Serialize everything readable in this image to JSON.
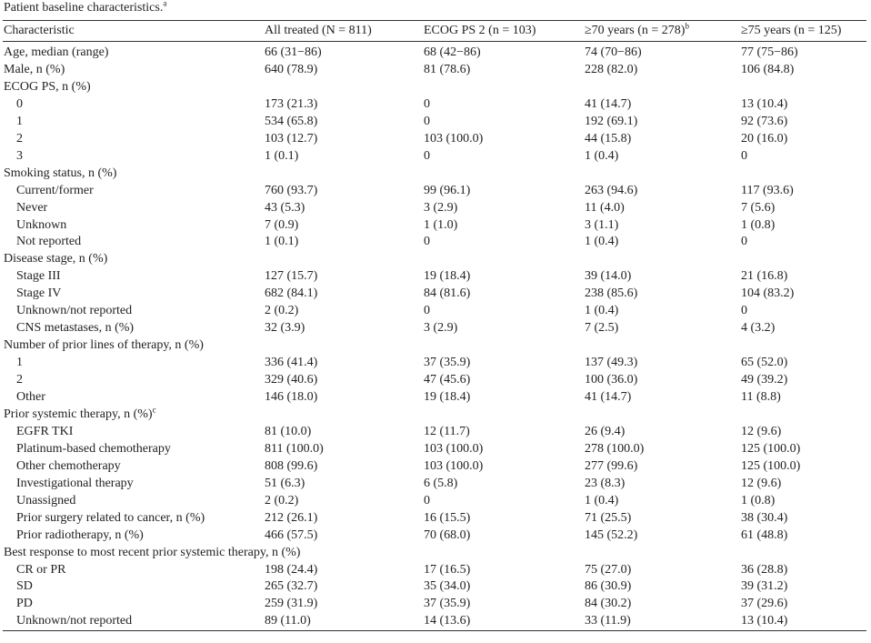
{
  "title": {
    "text": "Patient baseline characteristics.",
    "note": "a"
  },
  "table": {
    "header": [
      {
        "text": "Characteristic"
      },
      {
        "text": "All treated (N = 811)"
      },
      {
        "text": "ECOG PS 2 (n = 103)"
      },
      {
        "text": "≥70 years (n = 278)",
        "note": "b"
      },
      {
        "text": "≥75 years (n = 125)"
      }
    ],
    "rows": [
      {
        "cells": [
          "Age, median (range)",
          "66 (31−86)",
          "68 (42−86)",
          "74 (70−86)",
          "77 (75−86)"
        ]
      },
      {
        "cells": [
          "Male, n (%)",
          "640 (78.9)",
          "81 (78.6)",
          "228 (82.0)",
          "106 (84.8)"
        ]
      },
      {
        "heading": "ECOG PS, n (%)",
        "rows": [
          [
            "0",
            "173 (21.3)",
            "0",
            "41 (14.7)",
            "13 (10.4)"
          ],
          [
            "1",
            "534 (65.8)",
            "0",
            "192 (69.1)",
            "92 (73.6)"
          ],
          [
            "2",
            "103 (12.7)",
            "103 (100.0)",
            "44 (15.8)",
            "20 (16.0)"
          ],
          [
            "3",
            "1 (0.1)",
            "0",
            "1 (0.4)",
            "0"
          ]
        ]
      },
      {
        "heading": "Smoking status, n (%)",
        "rows": [
          [
            "Current/former",
            "760 (93.7)",
            "99 (96.1)",
            "263 (94.6)",
            "117 (93.6)"
          ],
          [
            "Never",
            "43 (5.3)",
            "3 (2.9)",
            "11 (4.0)",
            "7 (5.6)"
          ],
          [
            "Unknown",
            "7 (0.9)",
            "1 (1.0)",
            "3 (1.1)",
            "1 (0.8)"
          ],
          [
            "Not reported",
            "1 (0.1)",
            "0",
            "1 (0.4)",
            "0"
          ]
        ]
      },
      {
        "heading": "Disease stage, n (%)",
        "rows": [
          [
            "Stage III",
            "127 (15.7)",
            "19 (18.4)",
            "39 (14.0)",
            "21 (16.8)"
          ],
          [
            "Stage IV",
            "682 (84.1)",
            "84 (81.6)",
            "238 (85.6)",
            "104 (83.2)"
          ],
          [
            "Unknown/not reported",
            "2 (0.2)",
            "0",
            "1 (0.4)",
            "0"
          ],
          [
            "CNS metastases, n (%)",
            "32 (3.9)",
            "3 (2.9)",
            "7 (2.5)",
            "4 (3.2)"
          ]
        ]
      },
      {
        "heading": "Number of prior lines of therapy, n (%)",
        "rows": [
          [
            "1",
            "336 (41.4)",
            "37 (35.9)",
            "137 (49.3)",
            "65 (52.0)"
          ],
          [
            "2",
            "329 (40.6)",
            "47 (45.6)",
            "100 (36.0)",
            "49 (39.2)"
          ],
          [
            "Other",
            "146 (18.0)",
            "19 (18.4)",
            "41 (14.7)",
            "11 (8.8)"
          ]
        ]
      },
      {
        "heading": "Prior systemic therapy, n (%)",
        "note": "c",
        "rows": [
          [
            "EGFR TKI",
            "81 (10.0)",
            "12 (11.7)",
            "26 (9.4)",
            "12 (9.6)"
          ],
          [
            "Platinum-based chemotherapy",
            "811 (100.0)",
            "103 (100.0)",
            "278 (100.0)",
            "125 (100.0)"
          ],
          [
            "Other chemotherapy",
            "808 (99.6)",
            "103 (100.0)",
            "277 (99.6)",
            "125 (100.0)"
          ],
          [
            "Investigational therapy",
            "51 (6.3)",
            "6 (5.8)",
            "23 (8.3)",
            "12 (9.6)"
          ],
          [
            "Unassigned",
            "2 (0.2)",
            "0",
            "1 (0.4)",
            "1 (0.8)"
          ],
          [
            "Prior surgery related to cancer, n (%)",
            "212 (26.1)",
            "16 (15.5)",
            "71 (25.5)",
            "38 (30.4)"
          ],
          [
            "Prior radiotherapy, n (%)",
            "466 (57.5)",
            "70 (68.0)",
            "145 (52.2)",
            "61 (48.8)"
          ]
        ]
      },
      {
        "heading": "Best response to most recent prior systemic therapy, n (%)",
        "rows": [
          [
            "CR or PR",
            "198 (24.4)",
            "17 (16.5)",
            "75 (27.0)",
            "36 (28.8)"
          ],
          [
            "SD",
            "265 (32.7)",
            "35 (34.0)",
            "86 (30.9)",
            "39 (31.2)"
          ],
          [
            "PD",
            "259 (31.9)",
            "37 (35.9)",
            "84 (30.2)",
            "37 (29.6)"
          ],
          [
            "Unknown/not reported",
            "89 (11.0)",
            "14 (13.6)",
            "33 (11.9)",
            "13 (10.4)"
          ]
        ]
      }
    ]
  }
}
